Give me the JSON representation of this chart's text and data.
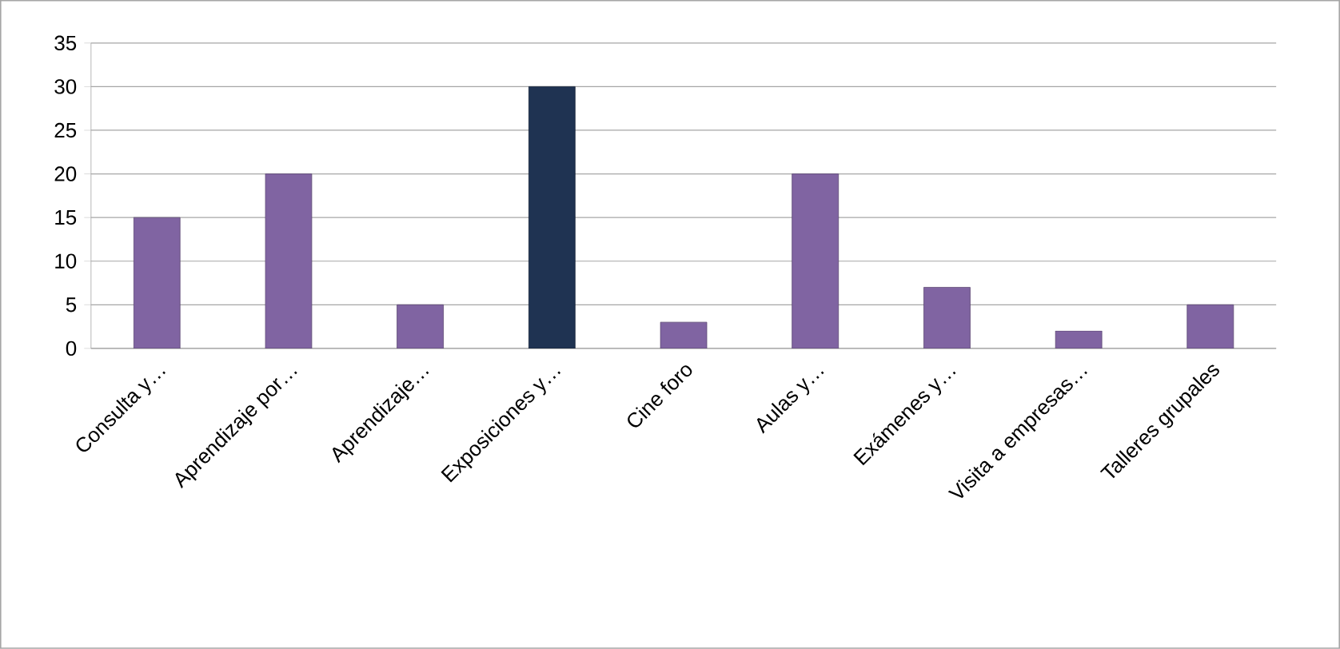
{
  "chart_data": {
    "type": "bar",
    "categories": [
      "Consulta y…",
      "Aprendizaje por…",
      "Aprendizaje…",
      "Exposiciones y…",
      "Cine foro",
      "Aulas y…",
      "Exámenes y…",
      "Visita a empresas…",
      "Talleres grupales"
    ],
    "values": [
      15,
      20,
      5,
      30,
      3,
      20,
      7,
      2,
      5
    ],
    "colors": [
      "#8064a2",
      "#8064a2",
      "#8064a2",
      "#1f3352",
      "#8064a2",
      "#8064a2",
      "#8064a2",
      "#8064a2",
      "#8064a2"
    ],
    "ylim": [
      0,
      35
    ],
    "yticks": [
      0,
      5,
      10,
      15,
      20,
      25,
      30,
      35
    ],
    "grid": "y"
  }
}
